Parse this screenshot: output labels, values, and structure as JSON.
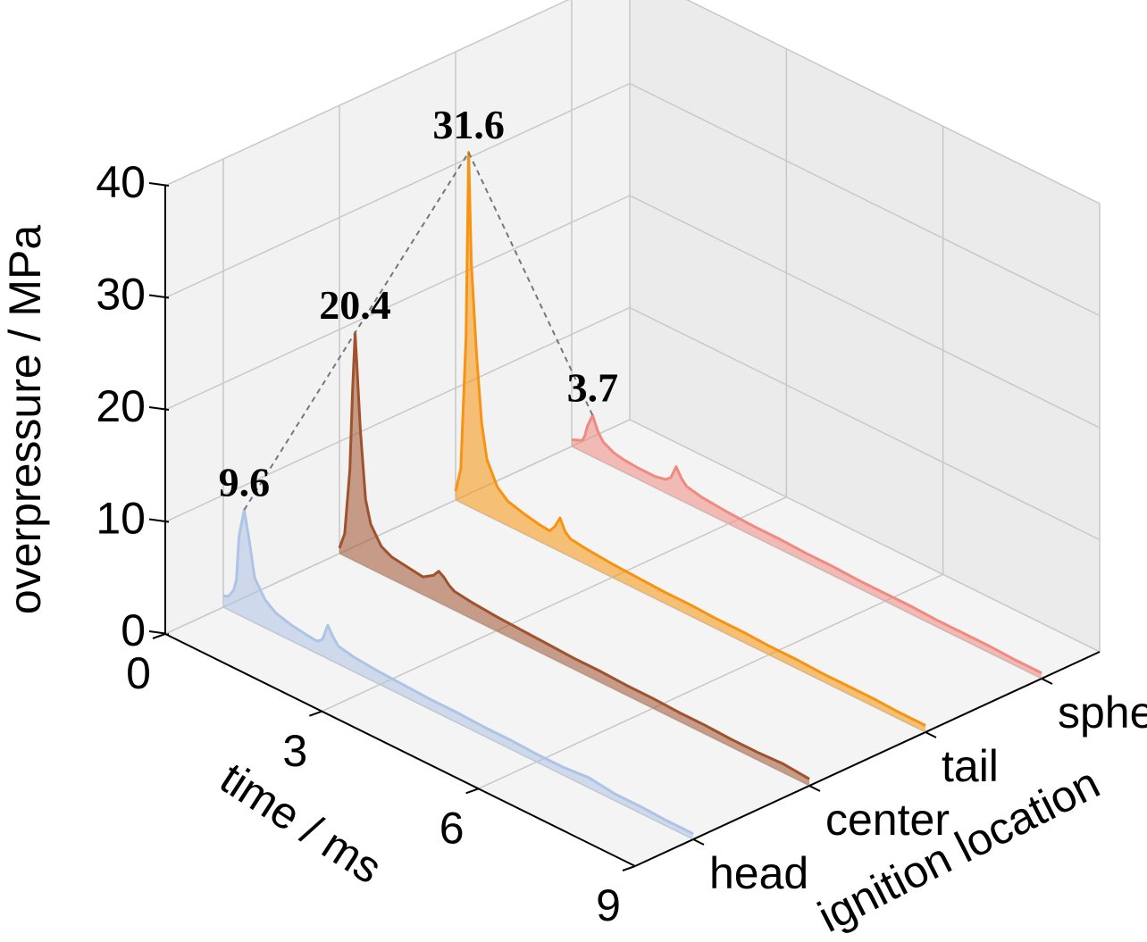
{
  "chart_data": {
    "type": "line3d",
    "xlabel": "time / ms",
    "ylabel": "ignition location",
    "zlabel": "overpressure / MPa",
    "categories": [
      "head",
      "center",
      "tail",
      "sphere"
    ],
    "xlim": [
      0,
      9
    ],
    "xticks": [
      0,
      3,
      6,
      9
    ],
    "ylim": [
      -0.5,
      3.5
    ],
    "zlim": [
      0,
      40
    ],
    "zticks": [
      0,
      10,
      20,
      30,
      40
    ],
    "grid": true,
    "x": [
      0,
      0.1,
      0.2,
      0.25,
      0.3,
      0.4,
      0.5,
      0.6,
      0.8,
      1.0,
      1.3,
      1.6,
      1.8,
      1.9,
      2.0,
      2.1,
      2.2,
      2.5,
      3,
      3.5,
      4,
      4.5,
      5,
      5.5,
      6,
      6.5,
      7,
      7.5,
      8,
      8.5,
      9
    ],
    "series": [
      {
        "color": "#aec4e6",
        "values": [
          1.0,
          1.2,
          2,
          3,
          7,
          9.6,
          7,
          4,
          2.5,
          1.8,
          1.4,
          1.2,
          1.1,
          1.5,
          3.0,
          2.2,
          1.6,
          1.3,
          1.1,
          1.0,
          0.9,
          0.9,
          0.8,
          0.8,
          0.7,
          0.7,
          0.9,
          0.6,
          0.6,
          0.5,
          0.5
        ]
      },
      {
        "color": "#a0522d",
        "values": [
          0.5,
          2,
          8,
          15,
          20.4,
          12,
          6,
          4,
          2.5,
          2,
          1.8,
          1.6,
          2.2,
          2.8,
          2.5,
          2,
          1.7,
          1.5,
          1.3,
          1.2,
          1.1,
          1,
          1,
          0.9,
          0.9,
          0.8,
          0.8,
          0.7,
          0.7,
          0.8,
          0.6
        ]
      },
      {
        "color": "#f7930f",
        "values": [
          0.8,
          3,
          15,
          31.6,
          22,
          14,
          8,
          5,
          3,
          2.2,
          1.8,
          1.5,
          1.4,
          2,
          3,
          2,
          1.6,
          1.4,
          1.2,
          1.1,
          1,
          1,
          0.9,
          0.9,
          0.8,
          0.8,
          0.7,
          0.7,
          0.7,
          0.6,
          0.6
        ]
      },
      {
        "color": "#f08a80",
        "values": [
          0.6,
          0.8,
          1,
          1.5,
          2.5,
          3.7,
          2.5,
          1.8,
          1.3,
          1.1,
          1,
          1,
          1.2,
          1.6,
          2.8,
          2,
          1.5,
          1.2,
          1,
          0.9,
          0.9,
          0.8,
          0.8,
          0.7,
          0.7,
          0.7,
          0.6,
          0.6,
          0.6,
          0.5,
          0.5
        ]
      }
    ]
  }
}
